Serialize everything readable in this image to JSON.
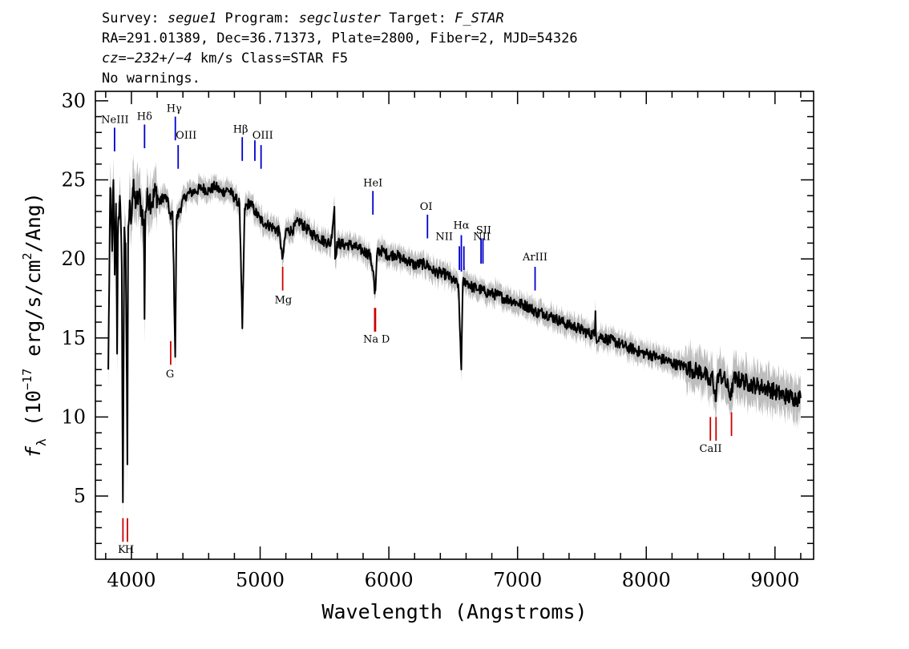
{
  "header": {
    "line1": {
      "survey_label": "Survey: ",
      "survey": "segue1",
      "program_label": " Program: ",
      "program": "segcluster",
      "target_label": " Target: ",
      "target": "F_STAR"
    },
    "line2": "RA=291.01389, Dec=36.71373, Plate=2800, Fiber=2, MJD=54326",
    "line3": {
      "cz_label": "cz",
      "cz_value": "=−232+/−4",
      "rest": " km/s Class=STAR F5"
    },
    "line4": "No warnings."
  },
  "chart_data": {
    "type": "line",
    "title": "",
    "xlabel": "Wavelength (Angstroms)",
    "ylabel": {
      "prefix": "f",
      "subscript": "λ",
      "unit_open": " (10",
      "exponent": "−17",
      "unit_close": " erg/s/cm",
      "sq": "2",
      "unit_end": "/Ang)"
    },
    "xlim": [
      3720,
      9300
    ],
    "ylim": [
      1,
      30.6
    ],
    "xticks": [
      4000,
      5000,
      6000,
      7000,
      8000,
      9000
    ],
    "yticks": [
      5,
      10,
      15,
      20,
      25,
      30
    ],
    "grid": false,
    "series": [
      {
        "role": "flux",
        "color": "#000000",
        "points": [
          [
            3820,
            13.0
          ],
          [
            3835,
            24.5
          ],
          [
            3850,
            20.5
          ],
          [
            3860,
            25.0
          ],
          [
            3870,
            19.0
          ],
          [
            3880,
            23.5
          ],
          [
            3889,
            14.0
          ],
          [
            3895,
            22.0
          ],
          [
            3910,
            24.0
          ],
          [
            3925,
            19.5
          ],
          [
            3933.7,
            4.6
          ],
          [
            3945,
            22.0
          ],
          [
            3955,
            21.0
          ],
          [
            3968.5,
            7.0
          ],
          [
            3975,
            22.0
          ],
          [
            3990,
            23.5
          ],
          [
            4000,
            22.5
          ],
          [
            4010,
            24.5
          ],
          [
            4020,
            24.0
          ],
          [
            4040,
            23.5
          ],
          [
            4060,
            24.0
          ],
          [
            4080,
            23.0
          ],
          [
            4095,
            22.5
          ],
          [
            4101.7,
            16.2
          ],
          [
            4108,
            23.0
          ],
          [
            4130,
            24.0
          ],
          [
            4160,
            23.6
          ],
          [
            4190,
            24.3
          ],
          [
            4220,
            23.5
          ],
          [
            4250,
            24.0
          ],
          [
            4280,
            23.7
          ],
          [
            4305,
            22.5
          ],
          [
            4320,
            23.0
          ],
          [
            4340.5,
            13.8
          ],
          [
            4350,
            22.5
          ],
          [
            4380,
            23.2
          ],
          [
            4420,
            24.0
          ],
          [
            4460,
            24.2
          ],
          [
            4500,
            24.3
          ],
          [
            4550,
            24.5
          ],
          [
            4600,
            24.3
          ],
          [
            4650,
            24.6
          ],
          [
            4700,
            24.2
          ],
          [
            4750,
            24.4
          ],
          [
            4800,
            23.9
          ],
          [
            4840,
            23.5
          ],
          [
            4861.3,
            15.6
          ],
          [
            4880,
            23.2
          ],
          [
            4920,
            23.6
          ],
          [
            4960,
            23.0
          ],
          [
            5000,
            22.5
          ],
          [
            5050,
            22.2
          ],
          [
            5100,
            22.0
          ],
          [
            5150,
            21.7
          ],
          [
            5172,
            20.0
          ],
          [
            5183,
            20.5
          ],
          [
            5200,
            21.8
          ],
          [
            5250,
            21.8
          ],
          [
            5300,
            22.4
          ],
          [
            5350,
            22.0
          ],
          [
            5400,
            21.6
          ],
          [
            5450,
            21.4
          ],
          [
            5500,
            21.1
          ],
          [
            5550,
            21.0
          ],
          [
            5577,
            23.3
          ],
          [
            5582,
            20.0
          ],
          [
            5600,
            21.0
          ],
          [
            5650,
            20.9
          ],
          [
            5700,
            20.9
          ],
          [
            5750,
            20.7
          ],
          [
            5800,
            20.5
          ],
          [
            5850,
            20.3
          ],
          [
            5880,
            19.2
          ],
          [
            5890,
            17.8
          ],
          [
            5896,
            18.0
          ],
          [
            5910,
            20.5
          ],
          [
            5950,
            20.5
          ],
          [
            6000,
            20.2
          ],
          [
            6050,
            20.3
          ],
          [
            6100,
            20.0
          ],
          [
            6150,
            19.9
          ],
          [
            6200,
            19.6
          ],
          [
            6250,
            19.7
          ],
          [
            6300,
            19.6
          ],
          [
            6350,
            19.2
          ],
          [
            6400,
            19.1
          ],
          [
            6450,
            19.0
          ],
          [
            6500,
            18.6
          ],
          [
            6540,
            18.4
          ],
          [
            6562.8,
            13.0
          ],
          [
            6575,
            18.5
          ],
          [
            6600,
            18.6
          ],
          [
            6650,
            18.2
          ],
          [
            6700,
            18.1
          ],
          [
            6750,
            17.9
          ],
          [
            6800,
            17.8
          ],
          [
            6850,
            17.7
          ],
          [
            6900,
            17.5
          ],
          [
            6950,
            17.4
          ],
          [
            7000,
            17.2
          ],
          [
            7050,
            17.1
          ],
          [
            7100,
            16.9
          ],
          [
            7150,
            16.6
          ],
          [
            7200,
            16.6
          ],
          [
            7250,
            16.4
          ],
          [
            7300,
            16.2
          ],
          [
            7350,
            16.0
          ],
          [
            7400,
            15.8
          ],
          [
            7450,
            15.7
          ],
          [
            7500,
            15.5
          ],
          [
            7550,
            15.3
          ],
          [
            7600,
            15.2
          ],
          [
            7605,
            16.7
          ],
          [
            7610,
            15.0
          ],
          [
            7650,
            15.1
          ],
          [
            7700,
            14.9
          ],
          [
            7750,
            14.8
          ],
          [
            7800,
            14.6
          ],
          [
            7850,
            14.4
          ],
          [
            7900,
            14.3
          ],
          [
            7950,
            14.1
          ],
          [
            8000,
            14.0
          ],
          [
            8050,
            13.9
          ],
          [
            8100,
            13.7
          ],
          [
            8150,
            13.6
          ],
          [
            8200,
            13.4
          ],
          [
            8250,
            13.3
          ],
          [
            8300,
            13.2
          ],
          [
            8350,
            13.0
          ],
          [
            8400,
            12.9
          ],
          [
            8450,
            12.8
          ],
          [
            8498,
            12.0
          ],
          [
            8510,
            12.8
          ],
          [
            8542,
            11.0
          ],
          [
            8555,
            12.7
          ],
          [
            8600,
            12.5
          ],
          [
            8662,
            11.3
          ],
          [
            8675,
            12.4
          ],
          [
            8750,
            12.3
          ],
          [
            8800,
            12.1
          ],
          [
            8850,
            12.0
          ],
          [
            8900,
            11.9
          ],
          [
            8950,
            11.8
          ],
          [
            9000,
            11.6
          ],
          [
            9050,
            11.4
          ],
          [
            9100,
            11.3
          ],
          [
            9150,
            11.2
          ],
          [
            9200,
            11.2
          ]
        ]
      },
      {
        "role": "error",
        "color": "#bdbdbd"
      }
    ],
    "emission_lines": [
      {
        "label": "NeIII",
        "wavelength": 3869,
        "color": "#0000cc",
        "flux_top": 28.3,
        "flux_bottom": 26.8
      },
      {
        "label": "Hδ",
        "wavelength": 4102,
        "color": "#0000cc",
        "flux_top": 28.5,
        "flux_bottom": 27.0
      },
      {
        "label": "Hγ",
        "wavelength": 4341,
        "color": "#0000cc",
        "flux_top": 29.0,
        "flux_bottom": 27.5
      },
      {
        "label": "OIII",
        "wavelength": 4363,
        "color": "#0000cc",
        "flux_top": 27.2,
        "flux_bottom": 25.7
      },
      {
        "label": "Hβ",
        "wavelength": 4861,
        "color": "#0000cc",
        "flux_top": 27.7,
        "flux_bottom": 26.2
      },
      {
        "label": "OIII",
        "wavelength": 4959,
        "color": "#0000cc",
        "flux_top": 27.5,
        "flux_bottom": 26.2
      },
      {
        "label": "OIII",
        "wavelength": 5007,
        "color": "#0000cc",
        "flux_top": 27.2,
        "flux_bottom": 25.7
      },
      {
        "label": "HeI",
        "wavelength": 5876,
        "color": "#0000cc",
        "flux_top": 24.3,
        "flux_bottom": 22.8
      },
      {
        "label": "OI",
        "wavelength": 6300,
        "color": "#0000cc",
        "flux_top": 22.8,
        "flux_bottom": 21.3
      },
      {
        "label": "NII",
        "wavelength": 6548,
        "color": "#0000cc",
        "flux_top": 20.8,
        "flux_bottom": 19.3
      },
      {
        "label": "Hα",
        "wavelength": 6563,
        "color": "#0000cc",
        "flux_top": 21.5,
        "flux_bottom": 19.2
      },
      {
        "label": "NII",
        "wavelength": 6583,
        "color": "#0000cc",
        "flux_top": 20.8,
        "flux_bottom": 19.3
      },
      {
        "label": "SII",
        "wavelength": 6716,
        "color": "#0000cc",
        "flux_top": 21.3,
        "flux_bottom": 19.7
      },
      {
        "label": "SII",
        "wavelength": 6731,
        "color": "#0000cc",
        "flux_top": 21.3,
        "flux_bottom": 19.7
      }
    ],
    "absorption_lines": [
      {
        "label": "K",
        "wavelength": 3934,
        "color": "#cc0000",
        "flux_top": 3.6,
        "flux_bottom": 2.1
      },
      {
        "label": "H",
        "wavelength": 3969,
        "color": "#cc0000",
        "flux_top": 3.6,
        "flux_bottom": 2.1
      },
      {
        "label": "G",
        "wavelength": 4305,
        "color": "#cc0000",
        "flux_top": 14.8,
        "flux_bottom": 13.3
      },
      {
        "label": "Mg",
        "wavelength": 5175,
        "color": "#cc0000",
        "flux_top": 19.5,
        "flux_bottom": 18.0
      },
      {
        "label": "Na",
        "wavelength": 5890,
        "color": "#cc0000",
        "flux_top": 16.9,
        "flux_bottom": 15.4
      },
      {
        "label": "D",
        "wavelength": 5896,
        "color": "#cc0000",
        "flux_top": 16.9,
        "flux_bottom": 15.4
      },
      {
        "label": "CaII",
        "wavelength": 8498,
        "color": "#cc0000",
        "flux_top": 10.0,
        "flux_bottom": 8.5
      },
      {
        "label": "CaII",
        "wavelength": 8542,
        "color": "#cc0000",
        "flux_top": 10.0,
        "flux_bottom": 8.5
      },
      {
        "label": "CaII",
        "wavelength": 8662,
        "color": "#cc0000",
        "flux_top": 10.3,
        "flux_bottom": 8.8
      }
    ],
    "line_annotations": [
      {
        "text": "NeIII",
        "wavelength": 3872,
        "flux": 28.6
      },
      {
        "text": "Hδ",
        "wavelength": 4102,
        "flux": 28.8
      },
      {
        "text": "Hγ",
        "wavelength": 4332,
        "flux": 29.3
      },
      {
        "text": "OIII",
        "wavelength": 4425,
        "flux": 27.6
      },
      {
        "text": "Hβ",
        "wavelength": 4848,
        "flux": 28.0
      },
      {
        "text": "OIII",
        "wavelength": 5020,
        "flux": 27.6
      },
      {
        "text": "HeI",
        "wavelength": 5876,
        "flux": 24.6
      },
      {
        "text": "OI",
        "wavelength": 6290,
        "flux": 23.1
      },
      {
        "text": "NII",
        "wavelength": 6430,
        "flux": 21.2
      },
      {
        "text": "Hα",
        "wavelength": 6563,
        "flux": 21.9
      },
      {
        "text": "SII",
        "wavelength": 6737,
        "flux": 21.6
      },
      {
        "text": "NII",
        "wavelength": 6722,
        "flux": 21.2
      },
      {
        "text": "ArIII",
        "wavelength": 7136,
        "flux": 19.9
      },
      {
        "text": "K",
        "wavelength": 3925,
        "flux": 1.4
      },
      {
        "text": "H",
        "wavelength": 3985,
        "flux": 1.4
      },
      {
        "text": "G",
        "wavelength": 4300,
        "flux": 12.5
      },
      {
        "text": "Mg",
        "wavelength": 5180,
        "flux": 17.2
      },
      {
        "text": "Na",
        "wavelength": 5860,
        "flux": 14.7
      },
      {
        "text": "D",
        "wavelength": 5975,
        "flux": 14.7
      },
      {
        "text": "CaII",
        "wavelength": 8500,
        "flux": 7.8
      }
    ],
    "extra_markers": [
      {
        "label": "ArIII",
        "wavelength": 7136,
        "color": "#0000cc",
        "flux_top": 19.5,
        "flux_bottom": 18.0
      }
    ]
  }
}
